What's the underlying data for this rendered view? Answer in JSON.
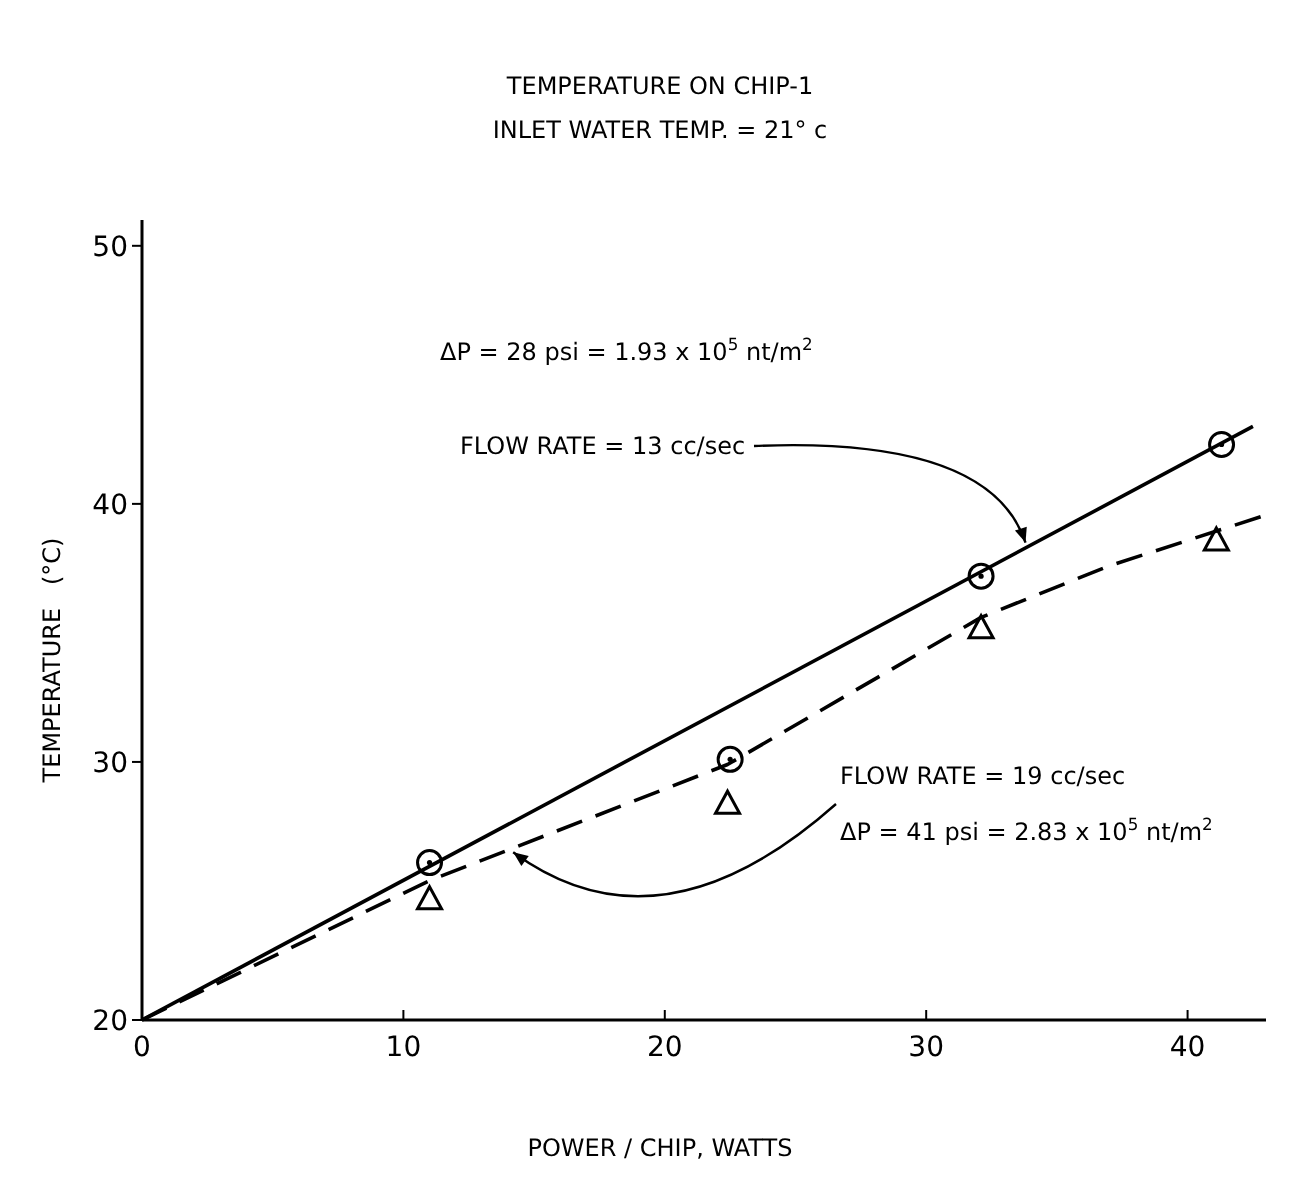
{
  "chart_data": {
    "type": "scatter",
    "title": "TEMPERATURE ON CHIP-1",
    "subtitle": "INLET WATER TEMP. = 21° c",
    "xlabel": "POWER / CHIP, WATTS",
    "ylabel": "TEMPERATURE   (°C)",
    "xlim": [
      0,
      43
    ],
    "ylim": [
      20,
      51
    ],
    "xticks": [
      0,
      10,
      20,
      30,
      40
    ],
    "yticks": [
      20,
      30,
      40,
      50
    ],
    "series": [
      {
        "marker": "circle",
        "color": "#000000",
        "x": [
          11,
          22.5,
          32.1,
          41.3
        ],
        "values": [
          26.1,
          30.1,
          37.2,
          42.3
        ]
      },
      {
        "marker": "triangle",
        "color": "#000000",
        "x": [
          11,
          22.4,
          32.1,
          41.1
        ],
        "values": [
          24.7,
          28.4,
          35.2,
          38.6
        ]
      },
      {
        "type": "line",
        "line_style": "solid",
        "color": "#000000",
        "x": [
          0,
          42.5
        ],
        "values": [
          20,
          43
        ]
      },
      {
        "type": "line",
        "line_style": "dashed",
        "color": "#000000",
        "x": [
          0,
          11,
          22.4,
          32.1,
          37,
          42.8
        ],
        "values": [
          20,
          25.4,
          29.9,
          35.6,
          37.6,
          39.5
        ]
      }
    ],
    "annotations": [
      "ΔP = 28 psi = 1.93 x 10$^{5}$ nt/m$^{2}$",
      {
        "text": "FLOW RATE = 13 cc/sec",
        "x": 33.8,
        "y": 38.5
      },
      {
        "text": "FLOW RATE = 19 cc/sec",
        "x": 14.2,
        "y": 26.5
      },
      "ΔP = 41 psi = 2.83 x 10$^{5}$ nt/m$^{2}$"
    ]
  }
}
